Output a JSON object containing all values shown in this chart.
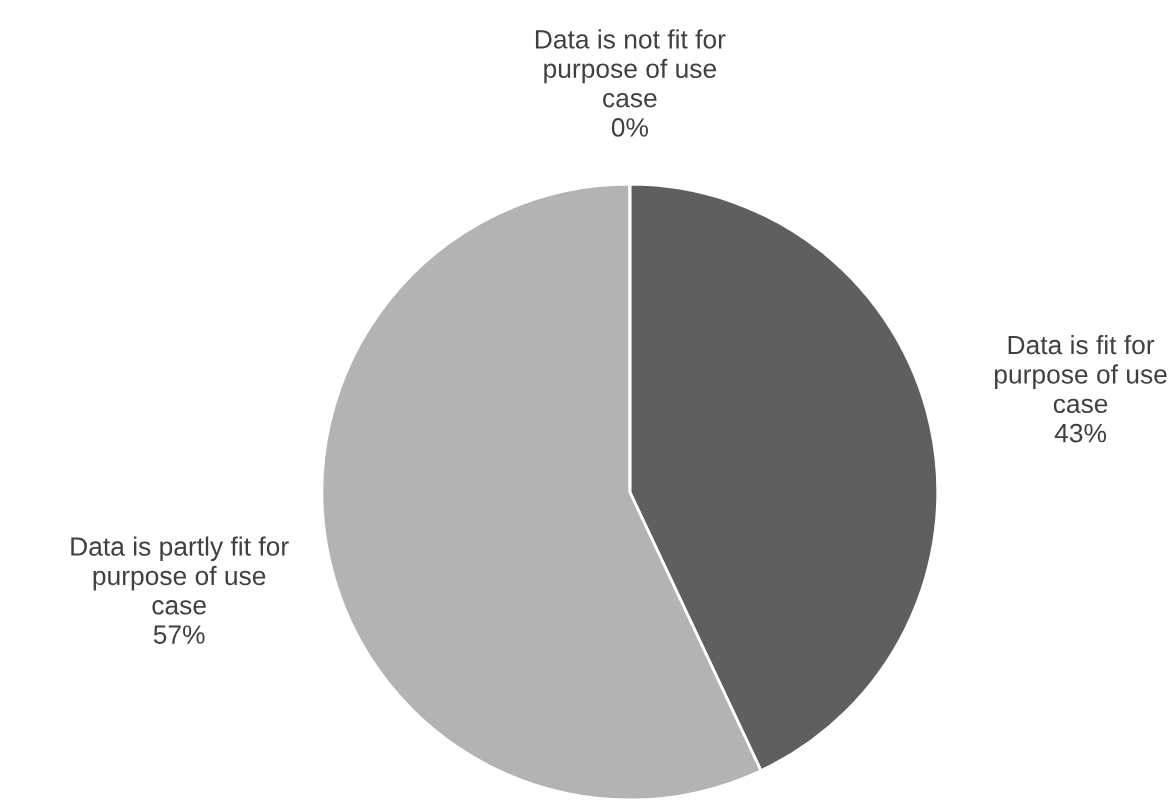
{
  "chart_data": {
    "type": "pie",
    "categories": [
      "Data is fit for\npurpose of use\ncase",
      "Data is partly fit for\npurpose of use\ncase",
      "Data is not fit for\npurpose of use\ncase"
    ],
    "values": [
      43,
      57,
      0
    ],
    "colors": [
      "#5f5f5f",
      "#b3b3b3",
      "#8c8c8c"
    ],
    "value_labels": [
      "43%",
      "57%",
      "0%"
    ]
  }
}
